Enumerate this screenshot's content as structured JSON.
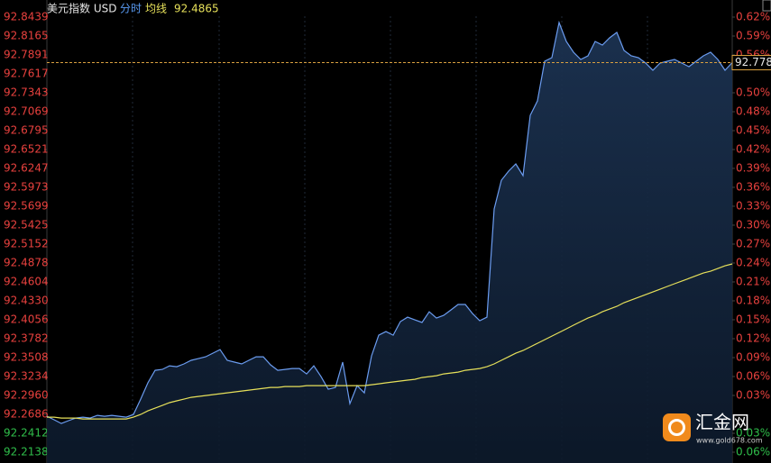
{
  "chart_data": {
    "type": "line",
    "title": "美元指数 USD",
    "mode": "分时",
    "base": 92.2686,
    "up_color": "#e8413e",
    "down_color": "#2fbd4a",
    "ylim": [
      92.2138,
      92.8439
    ],
    "yticks": [
      92.8439,
      92.8165,
      92.7891,
      92.7617,
      92.7343,
      92.7069,
      92.6795,
      92.6521,
      92.6247,
      92.5973,
      92.5699,
      92.5425,
      92.5152,
      92.4878,
      92.4604,
      {
        "value": 92.433,
        "label": "92.4330"
      },
      92.4056,
      92.3782,
      92.3508,
      92.3234,
      {
        "value": 92.296,
        "label": "92.2960"
      },
      92.2686,
      92.2412,
      92.2138
    ],
    "y2lim": [
      -0.0594,
      0.6236
    ],
    "y2ticks": [
      {
        "value": 0.6236,
        "label": "0.62%"
      },
      {
        "value": 0.5939,
        "label": "0.59%"
      },
      {
        "value": 0.5642,
        "label": "0.56%"
      },
      {
        "value": 0.5048,
        "label": "0.50%"
      },
      {
        "value": 0.4751,
        "label": "0.48%"
      },
      {
        "value": 0.4454,
        "label": "0.45%"
      },
      {
        "value": 0.4157,
        "label": "0.42%"
      },
      {
        "value": 0.3861,
        "label": "0.39%"
      },
      {
        "value": 0.3564,
        "label": "0.36%"
      },
      {
        "value": 0.3267,
        "label": "0.33%"
      },
      {
        "value": 0.297,
        "label": "0.30%"
      },
      {
        "value": 0.2673,
        "label": "0.27%"
      },
      {
        "value": 0.2376,
        "label": "0.24%"
      },
      {
        "value": 0.2079,
        "label": "0.21%"
      },
      {
        "value": 0.1782,
        "label": "0.18%"
      },
      {
        "value": 0.1485,
        "label": "0.15%"
      },
      {
        "value": 0.1188,
        "label": "0.12%"
      },
      {
        "value": 0.0891,
        "label": "0.09%"
      },
      {
        "value": 0.0594,
        "label": "0.06%"
      },
      {
        "value": 0.0297,
        "label": "0.03%"
      },
      {
        "value": -0.0297,
        "label": "0.03%"
      },
      {
        "value": -0.0594,
        "label": "0.06%"
      }
    ],
    "series": [
      {
        "color": "#6b9cf0",
        "values": [
          92.2659,
          92.2607,
          92.2554,
          92.2594,
          92.2633,
          92.2646,
          92.2633,
          92.2672,
          92.2659,
          92.2672,
          92.2659,
          92.2646,
          92.2685,
          92.2907,
          92.3142,
          92.3324,
          92.3337,
          92.3389,
          92.3376,
          92.3416,
          92.3468,
          92.3494,
          92.352,
          92.3572,
          92.3624,
          92.3468,
          92.3442,
          92.3416,
          92.3468,
          92.352,
          92.352,
          92.3403,
          92.3324,
          92.3337,
          92.335,
          92.335,
          92.3272,
          92.3389,
          92.3233,
          92.305,
          92.3076,
          92.3442,
          92.2841,
          92.3102,
          92.2998,
          92.3533,
          92.3833,
          92.3885,
          92.3833,
          92.4029,
          92.4094,
          92.4055,
          92.4016,
          92.4172,
          92.4081,
          92.412,
          92.4198,
          92.4277,
          92.4277,
          92.4146,
          92.4042,
          92.4094,
          92.566,
          92.6077,
          92.6208,
          92.6312,
          92.6143,
          92.7017,
          92.7226,
          92.78,
          92.7852,
          92.8361,
          92.8087,
          92.793,
          92.7826,
          92.7878,
          92.8087,
          92.8035,
          92.8139,
          92.8217,
          92.7956,
          92.7878,
          92.7852,
          92.7774,
          92.7669,
          92.7774,
          92.78,
          92.7826,
          92.7774,
          92.7721,
          92.78,
          92.7878,
          92.793,
          92.7826,
          92.7669,
          92.778
        ]
      },
      {
        "name": "均线",
        "color": "#e6e05a",
        "values": [
          92.2646,
          92.2646,
          92.2633,
          92.2633,
          92.2633,
          92.262,
          92.262,
          92.262,
          92.262,
          92.262,
          92.262,
          92.262,
          92.2646,
          92.2685,
          92.2737,
          92.2776,
          92.2815,
          92.2855,
          92.2881,
          92.2907,
          92.2933,
          92.2946,
          92.2959,
          92.2972,
          92.2985,
          92.2998,
          92.3011,
          92.3024,
          92.3037,
          92.305,
          92.3063,
          92.3076,
          92.3076,
          92.3089,
          92.3089,
          92.3089,
          92.3102,
          92.3102,
          92.3102,
          92.3102,
          92.3102,
          92.3102,
          92.3102,
          92.3102,
          92.3102,
          92.3115,
          92.3128,
          92.3142,
          92.3155,
          92.3168,
          92.3181,
          92.3194,
          92.322,
          92.3233,
          92.3246,
          92.3272,
          92.3285,
          92.3298,
          92.3324,
          92.3337,
          92.335,
          92.3376,
          92.3416,
          92.3468,
          92.352,
          92.3572,
          92.3611,
          92.3663,
          92.3715,
          92.3768,
          92.382,
          92.3872,
          92.3924,
          92.3977,
          92.4029,
          92.4081,
          92.412,
          92.4172,
          92.4211,
          92.425,
          92.4303,
          92.4342,
          92.4381,
          92.442,
          92.4459,
          92.4498,
          92.4538,
          92.4577,
          92.4616,
          92.4655,
          92.4694,
          92.4733,
          92.4759,
          92.4798,
          92.4837,
          92.4865
        ]
      }
    ],
    "watermark": {
      "brand": "汇金网",
      "site": "www.gold678.com"
    }
  }
}
